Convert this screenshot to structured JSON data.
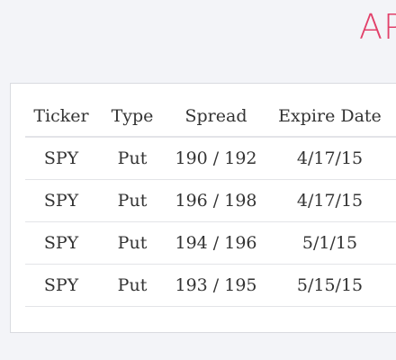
{
  "header": {
    "title_fragment": "AP"
  },
  "table": {
    "columns": [
      "Ticker",
      "Type",
      "Spread",
      "Expire Date"
    ],
    "rows": [
      [
        "SPY",
        "Put",
        "190 / 192",
        "4/17/15"
      ],
      [
        "SPY",
        "Put",
        "196 / 198",
        "4/17/15"
      ],
      [
        "SPY",
        "Put",
        "194 / 196",
        "5/1/15"
      ],
      [
        "SPY",
        "Put",
        "193 / 195",
        "5/15/15"
      ]
    ]
  },
  "colors": {
    "accent": "#e2406a",
    "background": "#f3f4f8",
    "card": "#ffffff",
    "divider": "#e3e4e8",
    "text": "#333333"
  }
}
